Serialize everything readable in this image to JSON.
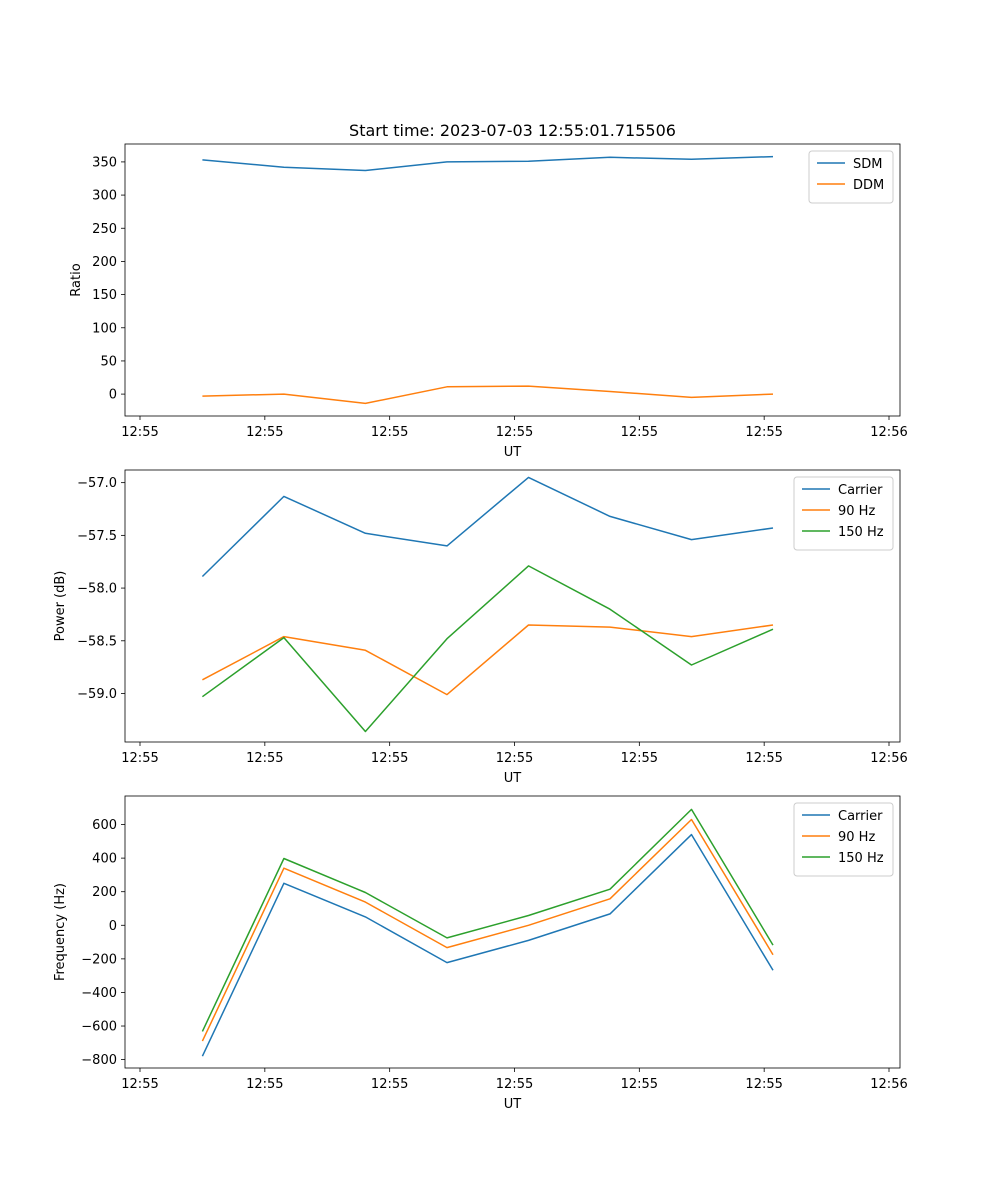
{
  "figure": {
    "title": "Start time: 2023-07-03 12:55:01.715506"
  },
  "chart_data": [
    {
      "type": "line",
      "title": "Start time: 2023-07-03 12:55:01.715506",
      "xlabel": "UT",
      "ylabel": "Ratio",
      "x": [
        0.5,
        1.153,
        1.806,
        2.459,
        3.112,
        3.765,
        4.418,
        5.071
      ],
      "xlim": [
        0,
        6.0
      ],
      "xticks": [
        0,
        1,
        2,
        3,
        4,
        5,
        6
      ],
      "xtick_labels": [
        "12:55",
        "12:55",
        "12:55",
        "12:55",
        "12:55",
        "12:55",
        "12:56"
      ],
      "ylim": [
        -33,
        377
      ],
      "yticks": [
        0,
        50,
        100,
        150,
        200,
        250,
        300,
        350
      ],
      "ytick_labels": [
        "0",
        "50",
        "100",
        "150",
        "200",
        "250",
        "300",
        "350"
      ],
      "legend": "top-right",
      "grid": false,
      "series": [
        {
          "name": "SDM",
          "color": "#1f77b4",
          "values": [
            353,
            342,
            337,
            350,
            351,
            357,
            354,
            358
          ]
        },
        {
          "name": "DDM",
          "color": "#ff7f0e",
          "values": [
            -3,
            0,
            -14,
            11,
            12,
            4,
            -5,
            0
          ]
        }
      ]
    },
    {
      "type": "line",
      "title": "",
      "xlabel": "UT",
      "ylabel": "Power (dB)",
      "x": [
        0.5,
        1.153,
        1.806,
        2.459,
        3.112,
        3.765,
        4.418,
        5.071
      ],
      "xlim": [
        0,
        6.0
      ],
      "xticks": [
        0,
        1,
        2,
        3,
        4,
        5,
        6
      ],
      "xtick_labels": [
        "12:55",
        "12:55",
        "12:55",
        "12:55",
        "12:55",
        "12:55",
        "12:56"
      ],
      "ylim": [
        -59.46,
        -56.88
      ],
      "yticks": [
        -59.0,
        -58.5,
        -58.0,
        -57.5,
        -57.0
      ],
      "ytick_labels": [
        "−59.0",
        "−58.5",
        "−58.0",
        "−57.5",
        "−57.0"
      ],
      "legend": "top-right",
      "grid": false,
      "series": [
        {
          "name": "Carrier",
          "color": "#1f77b4",
          "values": [
            -57.89,
            -57.13,
            -57.48,
            -57.6,
            -56.95,
            -57.32,
            -57.54,
            -57.43
          ]
        },
        {
          "name": "90 Hz",
          "color": "#ff7f0e",
          "values": [
            -58.87,
            -58.46,
            -58.59,
            -59.01,
            -58.35,
            -58.37,
            -58.46,
            -58.35
          ]
        },
        {
          "name": "150 Hz",
          "color": "#2ca02c",
          "values": [
            -59.03,
            -58.47,
            -59.36,
            -58.48,
            -57.79,
            -58.2,
            -58.73,
            -58.39
          ]
        }
      ]
    },
    {
      "type": "line",
      "title": "",
      "xlabel": "UT",
      "ylabel": "Frequency (Hz)",
      "x": [
        0.5,
        1.153,
        1.806,
        2.459,
        3.112,
        3.765,
        4.418,
        5.071
      ],
      "xlim": [
        0,
        6.0
      ],
      "xticks": [
        0,
        1,
        2,
        3,
        4,
        5,
        6
      ],
      "xtick_labels": [
        "12:55",
        "12:55",
        "12:55",
        "12:55",
        "12:55",
        "12:55",
        "12:56"
      ],
      "ylim": [
        -850,
        770
      ],
      "yticks": [
        -800,
        -600,
        -400,
        -200,
        0,
        200,
        400,
        600
      ],
      "ytick_labels": [
        "−800",
        "−600",
        "−400",
        "−200",
        "0",
        "200",
        "400",
        "600"
      ],
      "legend": "top-right",
      "grid": false,
      "series": [
        {
          "name": "Carrier",
          "color": "#1f77b4",
          "values": [
            -780,
            250,
            50,
            -222,
            -90,
            68,
            540,
            -268
          ]
        },
        {
          "name": "90 Hz",
          "color": "#ff7f0e",
          "values": [
            -690,
            340,
            138,
            -133,
            0,
            158,
            630,
            -175
          ]
        },
        {
          "name": "150 Hz",
          "color": "#2ca02c",
          "values": [
            -632,
            398,
            195,
            -75,
            58,
            215,
            690,
            -118
          ]
        }
      ]
    }
  ]
}
